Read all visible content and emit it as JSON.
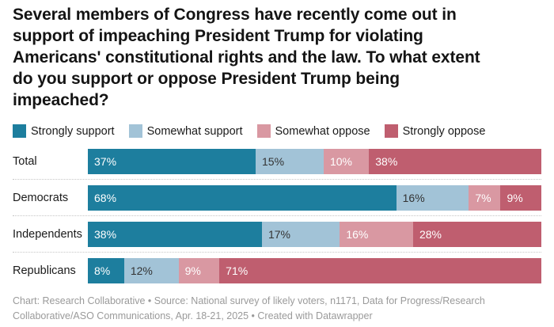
{
  "title": {
    "text": "Several members of Congress have recently come out in support of impeaching President Trump for violating Americans' constitutional rights and the law. To what extent do you support or oppose President Trump being impeached?",
    "lines": [
      "Several members of Congress have recently come out in",
      "support of impeaching President Trump for violating",
      "Americans' constitutional rights and the law. To what extent",
      "do you support or oppose President Trump being",
      "impeached?"
    ]
  },
  "colors": {
    "strongly_support": "#1d7e9e",
    "somewhat_support": "#a2c3d7",
    "somewhat_oppose": "#d998a2",
    "strongly_oppose": "#bf5e6f",
    "title_text": "#141414",
    "footer_text": "#9a9a9a",
    "separator": "#c6c6c6"
  },
  "chart_data": {
    "type": "bar",
    "stacked": true,
    "orientation": "horizontal",
    "grid": false,
    "legend_position": "top",
    "xlim": [
      0,
      100
    ],
    "value_suffix": "%",
    "categories": [
      "Total",
      "Democrats",
      "Independents",
      "Republicans"
    ],
    "series": [
      {
        "name": "Strongly support",
        "color": "#1d7e9e",
        "text_color": "#ffffff",
        "values": [
          37,
          68,
          38,
          8
        ]
      },
      {
        "name": "Somewhat support",
        "color": "#a2c3d7",
        "text_color": "#333333",
        "values": [
          15,
          16,
          17,
          12
        ]
      },
      {
        "name": "Somewhat oppose",
        "color": "#d998a2",
        "text_color": "#ffffff",
        "values": [
          10,
          7,
          16,
          9
        ]
      },
      {
        "name": "Strongly oppose",
        "color": "#bf5e6f",
        "text_color": "#ffffff",
        "values": [
          38,
          9,
          28,
          71
        ]
      }
    ]
  },
  "footer": {
    "lines": [
      "Chart: Research Collaborative • Source: National survey of likely voters, n1171, Data for Progress/Research",
      "Collaborative/ASO Communications, Apr. 18-21, 2025 • Created with Datawrapper"
    ]
  }
}
